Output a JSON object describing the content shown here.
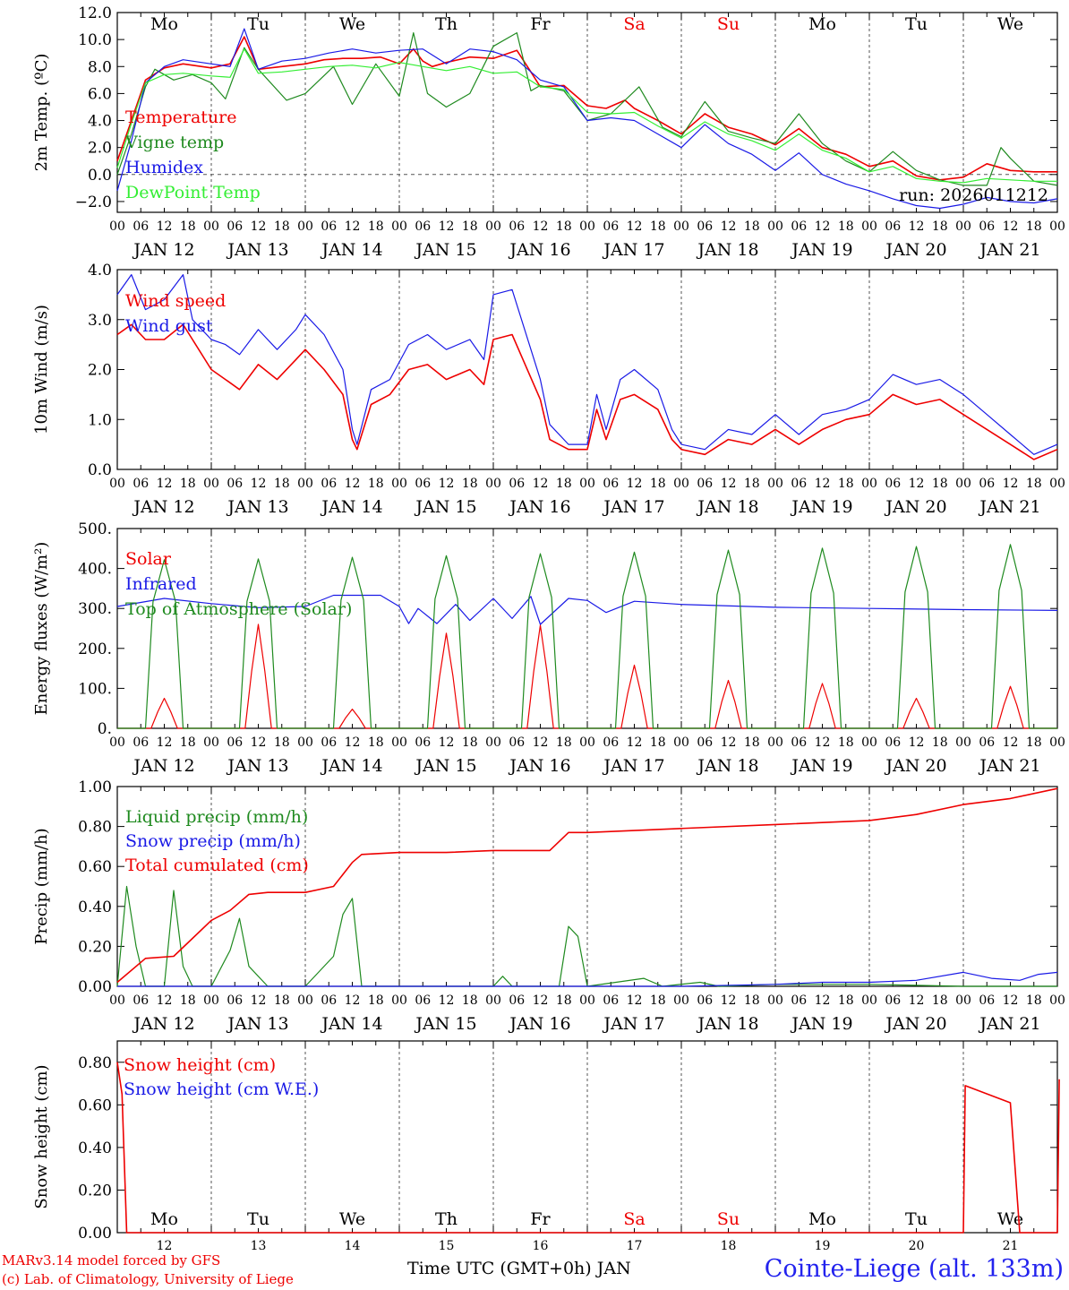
{
  "footer": {
    "model_line": "MARv3.14 model forced by GFS",
    "lab_line": "(c) Lab. of Climatology, University of Liege",
    "axis_caption": "Time UTC (GMT+0h) JAN",
    "station": "Cointe-Liege (alt. 133m)"
  },
  "days": {
    "weekday_labels": [
      "Mo",
      "Tu",
      "We",
      "Th",
      "Fr",
      "Sa",
      "Su",
      "Mo",
      "Tu",
      "We"
    ],
    "weekend_indices": [
      5,
      6
    ],
    "date_labels": [
      "JAN 12",
      "JAN 13",
      "JAN 14",
      "JAN 15",
      "JAN 16",
      "JAN 17",
      "JAN 18",
      "JAN 19",
      "JAN 20",
      "JAN 21"
    ],
    "day_numbers": [
      "12",
      "13",
      "14",
      "15",
      "16",
      "17",
      "18",
      "19",
      "20",
      "21"
    ],
    "hour_ticks": [
      "00",
      "06",
      "12",
      "18"
    ],
    "final_tick": "00"
  },
  "colors": {
    "red": "#ee0000",
    "green": "#1f8a1f",
    "blue": "#1a1ae6",
    "lightgreen": "#33ee33",
    "weekend": "#ee0000"
  },
  "chart_data": [
    {
      "type": "line",
      "ylabel": "2m Temp. (ºC)",
      "ylim": [
        -2.8,
        12.0
      ],
      "yticks": [
        "−2.0",
        "0.0",
        "2.0",
        "4.0",
        "6.0",
        "8.0",
        "10.0",
        "12.0"
      ],
      "ytick_values": [
        -2,
        0,
        2,
        4,
        6,
        8,
        10,
        12
      ],
      "zero_line": true,
      "run_label": "run: 2026011212",
      "x_unit": "days since Jan 12 00 UTC",
      "series": [
        {
          "name": "Temperature",
          "color": "red",
          "x": [
            0,
            0.15,
            0.3,
            0.5,
            0.7,
            1,
            1.2,
            1.35,
            1.5,
            1.75,
            2,
            2.2,
            2.4,
            2.6,
            2.8,
            3,
            3.15,
            3.25,
            3.35,
            3.5,
            3.75,
            4,
            4.25,
            4.4,
            4.5,
            4.75,
            5,
            5.2,
            5.4,
            5.5,
            5.75,
            6,
            6.25,
            6.5,
            6.75,
            7,
            7.25,
            7.5,
            7.75,
            8,
            8.25,
            8.5,
            8.75,
            9,
            9.25,
            9.5,
            9.75,
            10
          ],
          "y": [
            1.0,
            4.0,
            7.0,
            7.9,
            8.2,
            7.9,
            8.2,
            10.2,
            7.8,
            8.0,
            8.2,
            8.5,
            8.6,
            8.6,
            8.7,
            8.2,
            9.3,
            8.4,
            8.0,
            8.3,
            8.7,
            8.6,
            9.2,
            7.6,
            6.5,
            6.6,
            5.1,
            4.9,
            5.5,
            4.9,
            4.0,
            3.0,
            4.5,
            3.5,
            3.0,
            2.2,
            3.4,
            2.0,
            1.5,
            0.6,
            1.0,
            -0.1,
            -0.4,
            -0.2,
            0.8,
            0.3,
            0.2,
            0.2
          ]
        },
        {
          "name": "Vigne temp",
          "color": "green",
          "x": [
            0,
            0.15,
            0.3,
            0.4,
            0.6,
            0.8,
            1,
            1.15,
            1.35,
            1.5,
            1.8,
            2,
            2.3,
            2.5,
            2.75,
            3,
            3.15,
            3.3,
            3.5,
            3.75,
            4,
            4.25,
            4.4,
            4.5,
            4.75,
            5,
            5.25,
            5.55,
            5.8,
            6,
            6.25,
            6.5,
            6.75,
            7,
            7.25,
            7.5,
            7.75,
            8,
            8.25,
            8.5,
            8.75,
            9,
            9.25,
            9.4,
            9.5,
            9.75,
            10
          ],
          "y": [
            0.0,
            3.0,
            6.5,
            7.8,
            7.0,
            7.4,
            6.8,
            5.6,
            9.4,
            7.8,
            5.5,
            6.0,
            8.0,
            5.2,
            8.2,
            5.8,
            10.5,
            6.0,
            5.0,
            6.0,
            9.5,
            10.5,
            6.2,
            6.6,
            6.2,
            4.0,
            4.5,
            6.5,
            3.5,
            2.8,
            5.4,
            3.2,
            2.7,
            2.3,
            4.5,
            2.3,
            1.0,
            0.2,
            1.7,
            0.3,
            -0.4,
            -0.8,
            -0.8,
            2.0,
            1.2,
            -0.5,
            -0.8
          ]
        },
        {
          "name": "Humidex",
          "color": "blue",
          "x": [
            0,
            0.15,
            0.3,
            0.5,
            0.7,
            1,
            1.2,
            1.35,
            1.5,
            1.75,
            2,
            2.25,
            2.5,
            2.75,
            3,
            3.25,
            3.5,
            3.75,
            4,
            4.25,
            4.5,
            4.75,
            5,
            5.25,
            5.5,
            5.75,
            6,
            6.25,
            6.5,
            6.75,
            7,
            7.25,
            7.5,
            7.75,
            8,
            8.25,
            8.5,
            8.75,
            9,
            9.25,
            9.5,
            9.75,
            10
          ],
          "y": [
            -1.2,
            2.5,
            6.8,
            8.0,
            8.5,
            8.2,
            8.0,
            10.8,
            7.8,
            8.4,
            8.6,
            9.0,
            9.3,
            9.0,
            9.2,
            9.3,
            8.2,
            9.3,
            9.1,
            8.5,
            7.0,
            6.5,
            4.0,
            4.2,
            4.0,
            3.0,
            2.0,
            3.7,
            2.3,
            1.5,
            0.3,
            1.6,
            0.0,
            -0.7,
            -1.2,
            -1.8,
            -2.3,
            -2.5,
            -2.2,
            -1.7,
            -2.0,
            -2.1,
            -1.8
          ]
        },
        {
          "name": "DewPoint Temp",
          "color": "lightgreen",
          "x": [
            0,
            0.15,
            0.3,
            0.5,
            0.7,
            1,
            1.2,
            1.35,
            1.5,
            1.75,
            2,
            2.25,
            2.5,
            2.75,
            3,
            3.25,
            3.5,
            3.75,
            4,
            4.25,
            4.5,
            4.75,
            5,
            5.25,
            5.5,
            5.75,
            6,
            6.25,
            6.5,
            6.75,
            7,
            7.25,
            7.5,
            7.75,
            8,
            8.25,
            8.5,
            8.75,
            9,
            9.25,
            9.5,
            9.75,
            10
          ],
          "y": [
            0.5,
            3.8,
            6.8,
            7.4,
            7.5,
            7.3,
            7.2,
            9.3,
            7.5,
            7.6,
            7.8,
            8.0,
            8.1,
            7.9,
            8.3,
            8.0,
            7.7,
            8.0,
            7.5,
            7.6,
            6.5,
            6.3,
            4.6,
            4.5,
            4.6,
            3.6,
            2.7,
            3.9,
            3.0,
            2.5,
            1.8,
            3.0,
            1.8,
            1.2,
            0.2,
            0.6,
            -0.3,
            -0.5,
            -0.6,
            -0.3,
            -0.4,
            -0.5,
            -0.5
          ]
        }
      ]
    },
    {
      "type": "line",
      "ylabel": "10m Wind (m/s)",
      "ylim": [
        0.0,
        4.0
      ],
      "yticks": [
        "0.0",
        "1.0",
        "2.0",
        "3.0",
        "4.0"
      ],
      "ytick_values": [
        0,
        1,
        2,
        3,
        4
      ],
      "series": [
        {
          "name": "Wind speed",
          "color": "red",
          "x": [
            0,
            0.15,
            0.3,
            0.5,
            0.7,
            0.8,
            1,
            1.15,
            1.3,
            1.5,
            1.7,
            1.9,
            2,
            2.2,
            2.4,
            2.5,
            2.55,
            2.7,
            2.9,
            3.1,
            3.3,
            3.5,
            3.75,
            3.9,
            4,
            4.2,
            4.5,
            4.6,
            4.8,
            5,
            5.1,
            5.2,
            5.35,
            5.5,
            5.75,
            5.9,
            6,
            6.25,
            6.5,
            6.75,
            7,
            7.25,
            7.5,
            7.75,
            8,
            8.25,
            8.5,
            8.75,
            9,
            9.25,
            9.5,
            9.75,
            10
          ],
          "y": [
            2.7,
            2.9,
            2.6,
            2.6,
            2.9,
            2.6,
            2.0,
            1.8,
            1.6,
            2.1,
            1.8,
            2.2,
            2.4,
            2.0,
            1.5,
            0.6,
            0.4,
            1.3,
            1.5,
            2.0,
            2.1,
            1.8,
            2.0,
            1.7,
            2.6,
            2.7,
            1.4,
            0.6,
            0.4,
            0.4,
            1.2,
            0.6,
            1.4,
            1.5,
            1.2,
            0.6,
            0.4,
            0.3,
            0.6,
            0.5,
            0.8,
            0.5,
            0.8,
            1.0,
            1.1,
            1.5,
            1.3,
            1.4,
            1.1,
            0.8,
            0.5,
            0.2,
            0.4
          ]
        },
        {
          "name": "Wind gust",
          "color": "blue",
          "x": [
            0,
            0.15,
            0.3,
            0.5,
            0.7,
            0.8,
            1,
            1.15,
            1.3,
            1.5,
            1.7,
            1.9,
            2,
            2.2,
            2.4,
            2.5,
            2.55,
            2.7,
            2.9,
            3.1,
            3.3,
            3.5,
            3.75,
            3.9,
            4,
            4.2,
            4.5,
            4.6,
            4.8,
            5,
            5.1,
            5.2,
            5.35,
            5.5,
            5.75,
            5.9,
            6,
            6.25,
            6.5,
            6.75,
            7,
            7.25,
            7.5,
            7.75,
            8,
            8.25,
            8.5,
            8.75,
            9,
            9.25,
            9.5,
            9.75,
            10
          ],
          "y": [
            3.5,
            3.9,
            3.2,
            3.4,
            3.9,
            3.0,
            2.6,
            2.5,
            2.3,
            2.8,
            2.4,
            2.8,
            3.1,
            2.7,
            2.0,
            0.8,
            0.5,
            1.6,
            1.8,
            2.5,
            2.7,
            2.4,
            2.6,
            2.2,
            3.5,
            3.6,
            1.8,
            0.9,
            0.5,
            0.5,
            1.5,
            0.8,
            1.8,
            2.0,
            1.6,
            0.8,
            0.5,
            0.4,
            0.8,
            0.7,
            1.1,
            0.7,
            1.1,
            1.2,
            1.4,
            1.9,
            1.7,
            1.8,
            1.5,
            1.1,
            0.7,
            0.3,
            0.5
          ]
        }
      ]
    },
    {
      "type": "line",
      "ylabel": "Energy fluxes (W/m²)",
      "ylim": [
        0,
        500
      ],
      "yticks": [
        "0.",
        "100.",
        "200.",
        "300.",
        "400.",
        "500."
      ],
      "ytick_values": [
        0,
        100,
        200,
        300,
        400,
        500
      ],
      "series": [
        {
          "name": "Solar",
          "color": "red",
          "daily_peak": [
            75,
            260,
            48,
            238,
            258,
            158,
            120,
            112,
            75,
            105
          ]
        },
        {
          "name": "Infrared",
          "color": "blue",
          "x": [
            0,
            0.5,
            1,
            1.5,
            2,
            2.3,
            2.8,
            3,
            3.1,
            3.2,
            3.4,
            3.6,
            3.75,
            4,
            4.2,
            4.4,
            4.5,
            4.8,
            5,
            5.2,
            5.5,
            6,
            7,
            8,
            9,
            10
          ],
          "y": [
            305,
            325,
            312,
            302,
            305,
            333,
            333,
            305,
            262,
            300,
            262,
            310,
            270,
            325,
            275,
            330,
            260,
            325,
            320,
            290,
            318,
            310,
            303,
            300,
            297,
            295
          ]
        },
        {
          "name": "Top of Atmosphere (Solar)",
          "color": "green",
          "daily_peak": [
            422,
            424,
            428,
            432,
            437,
            441,
            446,
            451,
            455,
            460
          ]
        }
      ]
    },
    {
      "type": "line",
      "ylabel": "Precip (mm/h)",
      "ylim": [
        0,
        1.0
      ],
      "yticks": [
        "0.00",
        "0.20",
        "0.40",
        "0.60",
        "0.80",
        "1.00"
      ],
      "ytick_values": [
        0,
        0.2,
        0.4,
        0.6,
        0.8,
        1.0
      ],
      "series": [
        {
          "name": "Liquid precip (mm/h)",
          "color": "green",
          "x": [
            0,
            0.1,
            0.2,
            0.3,
            0.5,
            0.6,
            0.7,
            0.8,
            1,
            1.2,
            1.3,
            1.4,
            1.6,
            1.8,
            2,
            2.3,
            2.4,
            2.5,
            2.6,
            2.7,
            3,
            3.5,
            4,
            4.1,
            4.2,
            4.7,
            4.8,
            4.9,
            5,
            5.6,
            5.8,
            6.2,
            6.4,
            7,
            8,
            9,
            10
          ],
          "y": [
            0.0,
            0.5,
            0.2,
            0.0,
            0.0,
            0.48,
            0.1,
            0.0,
            0.0,
            0.18,
            0.34,
            0.1,
            0.0,
            0.0,
            0.0,
            0.15,
            0.36,
            0.44,
            0.0,
            0.0,
            0.0,
            0.0,
            0.0,
            0.05,
            0.0,
            0.0,
            0.3,
            0.25,
            0.0,
            0.04,
            0.0,
            0.02,
            0.0,
            0.01,
            0.01,
            0.0,
            0.0
          ]
        },
        {
          "name": "Snow precip (mm/h)",
          "color": "blue",
          "x": [
            0,
            6,
            7,
            7.5,
            8,
            8.5,
            9,
            9.3,
            9.6,
            9.8,
            10
          ],
          "y": [
            0.0,
            0.0,
            0.01,
            0.02,
            0.02,
            0.03,
            0.07,
            0.04,
            0.03,
            0.06,
            0.07
          ]
        },
        {
          "name": "Total cumulated (cm)",
          "color": "red",
          "x": [
            0,
            0.3,
            0.6,
            0.8,
            1,
            1.2,
            1.4,
            1.6,
            1.8,
            2,
            2.3,
            2.5,
            2.6,
            3,
            3.5,
            4,
            4.6,
            4.8,
            5,
            6,
            7,
            8,
            8.5,
            9,
            9.5,
            10
          ],
          "y": [
            0.02,
            0.14,
            0.15,
            0.24,
            0.33,
            0.38,
            0.46,
            0.47,
            0.47,
            0.47,
            0.5,
            0.62,
            0.66,
            0.67,
            0.67,
            0.68,
            0.68,
            0.77,
            0.77,
            0.79,
            0.81,
            0.83,
            0.86,
            0.91,
            0.94,
            0.99
          ]
        }
      ]
    },
    {
      "type": "line",
      "ylabel": "Snow height (cm)",
      "ylim": [
        0,
        0.9
      ],
      "yticks": [
        "0.00",
        "0.20",
        "0.40",
        "0.60",
        "0.80"
      ],
      "ytick_values": [
        0,
        0.2,
        0.4,
        0.6,
        0.8
      ],
      "series": [
        {
          "name": "Snow height (cm)",
          "color": "red",
          "x": [
            0,
            0.05,
            0.1,
            9,
            9.02,
            9.5,
            9.6,
            10,
            10.02
          ],
          "y": [
            0.8,
            0.65,
            0.0,
            0.0,
            0.69,
            0.61,
            0.0,
            0.0,
            0.72
          ]
        },
        {
          "name": "Snow height (cm W.E.)",
          "color": "blue",
          "x": [],
          "y": []
        }
      ]
    }
  ]
}
